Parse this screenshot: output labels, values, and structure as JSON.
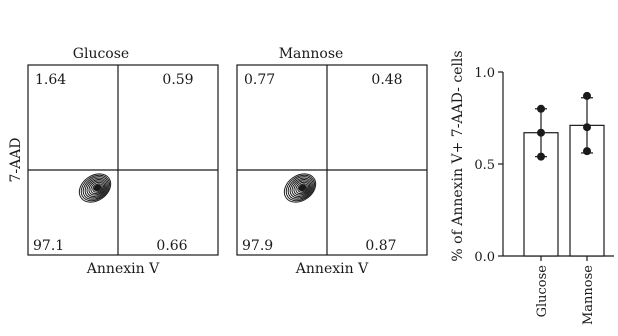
{
  "chart_data": [
    {
      "type": "scatter",
      "title": "Glucose",
      "xlabel": "Annexin V",
      "ylabel": "7-AAD",
      "quadrants": {
        "top_left": "1.64",
        "top_right": "0.59",
        "bottom_left": "97.1",
        "bottom_right": "0.66"
      }
    },
    {
      "type": "scatter",
      "title": "Mannose",
      "xlabel": "Annexin V",
      "quadrants": {
        "top_left": "0.77",
        "top_right": "0.48",
        "bottom_left": "97.9",
        "bottom_right": "0.87"
      }
    },
    {
      "type": "bar",
      "categories": [
        "Glucose",
        "Mannose"
      ],
      "values": [
        0.67,
        0.71
      ],
      "error": [
        0.13,
        0.15
      ],
      "points": [
        [
          0.8,
          0.67,
          0.54
        ],
        [
          0.87,
          0.7,
          0.57
        ]
      ],
      "ylabel": "% of Annexin V+ 7-AAD- cells",
      "ylim": [
        0,
        1.0
      ],
      "yticks": [
        "0.0",
        "0.5",
        "1.0"
      ],
      "yticks_values": [
        0,
        0.5,
        1.0
      ]
    }
  ]
}
